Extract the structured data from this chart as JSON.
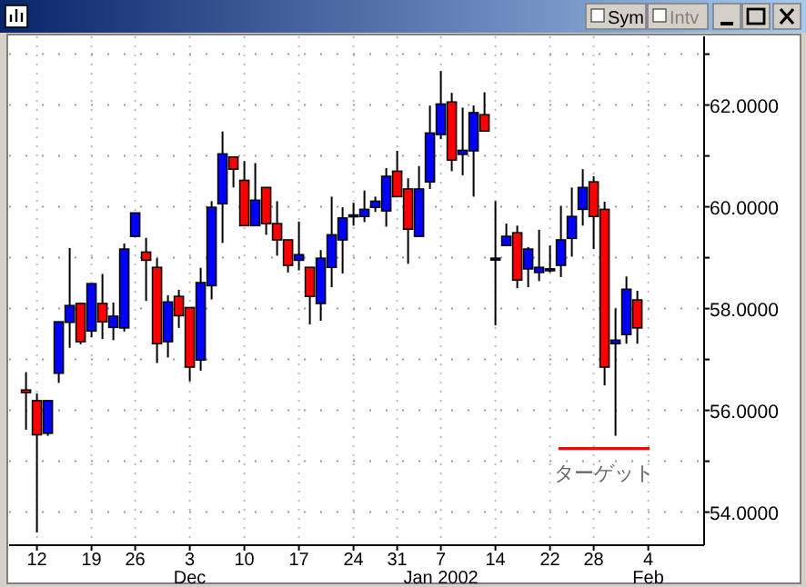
{
  "chart_data": {
    "type": "candlestick",
    "categories": [
      null,
      "12",
      null,
      null,
      null,
      null,
      "19",
      null,
      null,
      null,
      "26",
      null,
      null,
      null,
      null,
      "3\nDec",
      null,
      null,
      null,
      null,
      "10",
      null,
      null,
      null,
      null,
      "17",
      null,
      null,
      null,
      null,
      "24",
      null,
      null,
      null,
      "31",
      null,
      null,
      null,
      "7\nJan 2002",
      null,
      null,
      null,
      null,
      "14",
      null,
      null,
      null,
      null,
      "22",
      null,
      null,
      null,
      "28",
      null,
      null,
      null,
      null,
      "4\nFeb"
    ],
    "ohlc": [
      [
        56.4,
        56.75,
        55.62,
        56.35
      ],
      [
        56.19,
        56.33,
        53.6,
        55.52
      ],
      [
        55.55,
        56.2,
        55.5,
        56.19
      ],
      [
        56.73,
        57.74,
        56.54,
        57.74
      ],
      [
        57.73,
        59.19,
        57.23,
        58.06
      ],
      [
        58.1,
        58.12,
        57.3,
        57.35
      ],
      [
        57.56,
        58.49,
        57.44,
        58.49
      ],
      [
        58.1,
        58.68,
        57.4,
        57.74
      ],
      [
        57.63,
        58.12,
        57.38,
        57.85
      ],
      [
        57.62,
        59.28,
        57.55,
        59.17
      ],
      [
        59.42,
        59.88,
        59.4,
        59.88
      ],
      [
        59.11,
        59.39,
        58.15,
        58.95
      ],
      [
        58.81,
        58.99,
        56.93,
        57.31
      ],
      [
        57.35,
        58.26,
        57.04,
        58.13
      ],
      [
        58.24,
        58.37,
        57.62,
        57.86
      ],
      [
        58.02,
        58.02,
        56.57,
        56.85
      ],
      [
        56.99,
        58.8,
        56.78,
        58.51
      ],
      [
        58.45,
        60.11,
        58.18,
        59.99
      ],
      [
        60.06,
        61.48,
        59.29,
        61.04
      ],
      [
        60.98,
        60.98,
        60.38,
        60.74
      ],
      [
        60.52,
        60.9,
        59.63,
        59.63
      ],
      [
        59.63,
        60.86,
        59.63,
        60.13
      ],
      [
        60.38,
        60.38,
        59.45,
        59.67
      ],
      [
        59.67,
        60.11,
        59.04,
        59.35
      ],
      [
        59.35,
        59.35,
        58.71,
        58.85
      ],
      [
        58.95,
        59.71,
        58.75,
        59.06
      ],
      [
        58.81,
        58.81,
        57.69,
        58.24
      ],
      [
        58.1,
        59.15,
        57.76,
        58.99
      ],
      [
        58.81,
        60.2,
        58.42,
        59.45
      ],
      [
        59.35,
        59.99,
        58.69,
        59.78
      ],
      [
        59.82,
        60.08,
        59.63,
        59.84
      ],
      [
        59.81,
        60.32,
        59.7,
        59.95
      ],
      [
        59.99,
        60.2,
        59.9,
        60.11
      ],
      [
        59.92,
        60.76,
        59.61,
        60.6
      ],
      [
        60.7,
        61.1,
        60.2,
        60.2
      ],
      [
        60.35,
        60.56,
        58.88,
        59.56
      ],
      [
        59.42,
        60.8,
        59.42,
        60.35
      ],
      [
        60.49,
        61.99,
        60.35,
        61.45
      ],
      [
        61.42,
        62.67,
        61.33,
        62.02
      ],
      [
        62.06,
        62.24,
        60.7,
        60.92
      ],
      [
        61.03,
        61.95,
        60.62,
        61.11
      ],
      [
        61.1,
        61.99,
        60.2,
        61.85
      ],
      [
        61.81,
        62.25,
        61.49,
        61.49
      ],
      [
        58.97,
        60.11,
        57.67,
        58.99
      ],
      [
        59.24,
        59.67,
        59.24,
        59.42
      ],
      [
        59.49,
        59.63,
        58.4,
        58.56
      ],
      [
        58.78,
        59.21,
        58.42,
        59.17
      ],
      [
        58.71,
        59.55,
        58.54,
        58.81
      ],
      [
        58.75,
        59.24,
        58.71,
        58.78
      ],
      [
        58.85,
        60.02,
        58.62,
        59.35
      ],
      [
        59.38,
        60.38,
        59.02,
        59.81
      ],
      [
        59.95,
        60.74,
        59.63,
        60.38
      ],
      [
        60.49,
        60.6,
        59.17,
        59.81
      ],
      [
        59.95,
        60.1,
        56.49,
        56.85
      ],
      [
        57.31,
        58.0,
        55.5,
        57.38
      ],
      [
        57.49,
        58.63,
        57.31,
        58.38
      ],
      [
        58.17,
        58.35,
        57.31,
        57.62
      ],
      null
    ],
    "colors": [
      "#ff0000",
      "#ff0000",
      "#0000ff",
      "#0000ff",
      "#0000ff",
      "#ff0000",
      "#0000ff",
      "#ff0000",
      "#0000ff",
      "#0000ff",
      "#0000ff",
      "#ff0000",
      "#ff0000",
      "#0000ff",
      "#ff0000",
      "#ff0000",
      "#0000ff",
      "#0000ff",
      "#0000ff",
      "#ff0000",
      "#ff0000",
      "#0000ff",
      "#ff0000",
      "#ff0000",
      "#ff0000",
      "#0000ff",
      "#ff0000",
      "#0000ff",
      "#0000ff",
      "#0000ff",
      "#0000ff",
      "#0000ff",
      "#0000ff",
      "#0000ff",
      "#ff0000",
      "#ff0000",
      "#0000ff",
      "#0000ff",
      "#0000ff",
      "#ff0000",
      "#0000ff",
      "#0000ff",
      "#ff0000",
      "#0000ff",
      "#0000ff",
      "#ff0000",
      "#0000ff",
      "#0000ff",
      "#0000ff",
      "#0000ff",
      "#0000ff",
      "#0000ff",
      "#ff0000",
      "#ff0000",
      "#0000ff",
      "#0000ff",
      "#ff0000",
      null
    ],
    "ylim": [
      53.35,
      63.35
    ],
    "yticks": [
      {
        "value": 54,
        "label": "54.0000"
      },
      {
        "value": 55,
        "label": null
      },
      {
        "value": 56,
        "label": "56.0000"
      },
      {
        "value": 57,
        "label": null
      },
      {
        "value": 58,
        "label": "58.0000"
      },
      {
        "value": 59,
        "label": null
      },
      {
        "value": 60,
        "label": "60.0000"
      },
      {
        "value": 61,
        "label": null
      },
      {
        "value": 62,
        "label": "62.0000"
      },
      {
        "value": 63,
        "label": null
      }
    ],
    "grid": true,
    "ref_lines": [
      {
        "axis": "y",
        "value": 55.25,
        "label": "ターゲット",
        "color": "#ff0000"
      }
    ],
    "annotations": [
      "Sym",
      "Intv"
    ]
  }
}
